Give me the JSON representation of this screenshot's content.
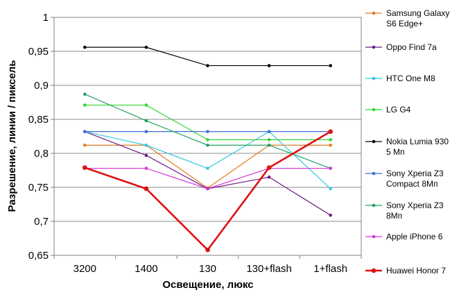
{
  "chart_data": {
    "type": "line",
    "categories": [
      "3200",
      "1400",
      "130",
      "130+flash",
      "1+flash"
    ],
    "xlabel": "Освещение,  люкс",
    "ylabel": "Разрешение,  линии / пиксель",
    "ylim": [
      0.65,
      1.0
    ],
    "yticks": [
      "1",
      "0,95",
      "0,9",
      "0,85",
      "0,8",
      "0,75",
      "0,7",
      "0,65"
    ],
    "grid": "horizontal",
    "legend": "right",
    "series": [
      {
        "name": "Samsung Galaxy S6 Edge+",
        "label_lines": [
          "Samsung Galaxy",
          "S6 Edge+"
        ],
        "color": "#e07b20",
        "values": [
          0.812,
          0.812,
          0.749,
          0.812,
          0.812
        ]
      },
      {
        "name": "Oppo Find 7a",
        "label_lines": [
          "Oppo Find 7a"
        ],
        "color": "#6b1e8a",
        "values": [
          0.832,
          0.797,
          0.748,
          0.765,
          0.709
        ]
      },
      {
        "name": "HTC One M8",
        "label_lines": [
          "HTC One M8"
        ],
        "color": "#33c8e0",
        "values": [
          0.832,
          0.812,
          0.778,
          0.832,
          0.748
        ]
      },
      {
        "name": "LG G4",
        "label_lines": [
          "LG G4"
        ],
        "color": "#33d633",
        "values": [
          0.871,
          0.871,
          0.82,
          0.82,
          0.82
        ]
      },
      {
        "name": "Nokia Lumia 930 5 Мп",
        "label_lines": [
          "Nokia Lumia 930",
          "5 Мп"
        ],
        "color": "#000000",
        "values": [
          0.956,
          0.956,
          0.929,
          0.929,
          0.929
        ]
      },
      {
        "name": "Sony Xperia Z3 Compact 8Мп",
        "label_lines": [
          "Sony Xperia Z3",
          "Compact 8Мп"
        ],
        "color": "#3b6fd6",
        "values": [
          0.832,
          0.832,
          0.832,
          0.832,
          0.832
        ]
      },
      {
        "name": "Sony Xperia Z3 8Мп",
        "label_lines": [
          "Sony Xperia Z3",
          "8Мп"
        ],
        "color": "#1fa060",
        "values": [
          0.887,
          0.848,
          0.812,
          0.812,
          0.778
        ]
      },
      {
        "name": "Apple iPhone 6",
        "label_lines": [
          "Apple iPhone 6"
        ],
        "color": "#d633d6",
        "values": [
          0.778,
          0.778,
          0.748,
          0.778,
          0.778
        ]
      },
      {
        "name": "Huawei Honor 7",
        "label_lines": [
          "Huawei Honor 7"
        ],
        "color": "#dd1111",
        "bold": true,
        "values": [
          0.779,
          0.748,
          0.658,
          0.779,
          0.832
        ]
      }
    ]
  }
}
